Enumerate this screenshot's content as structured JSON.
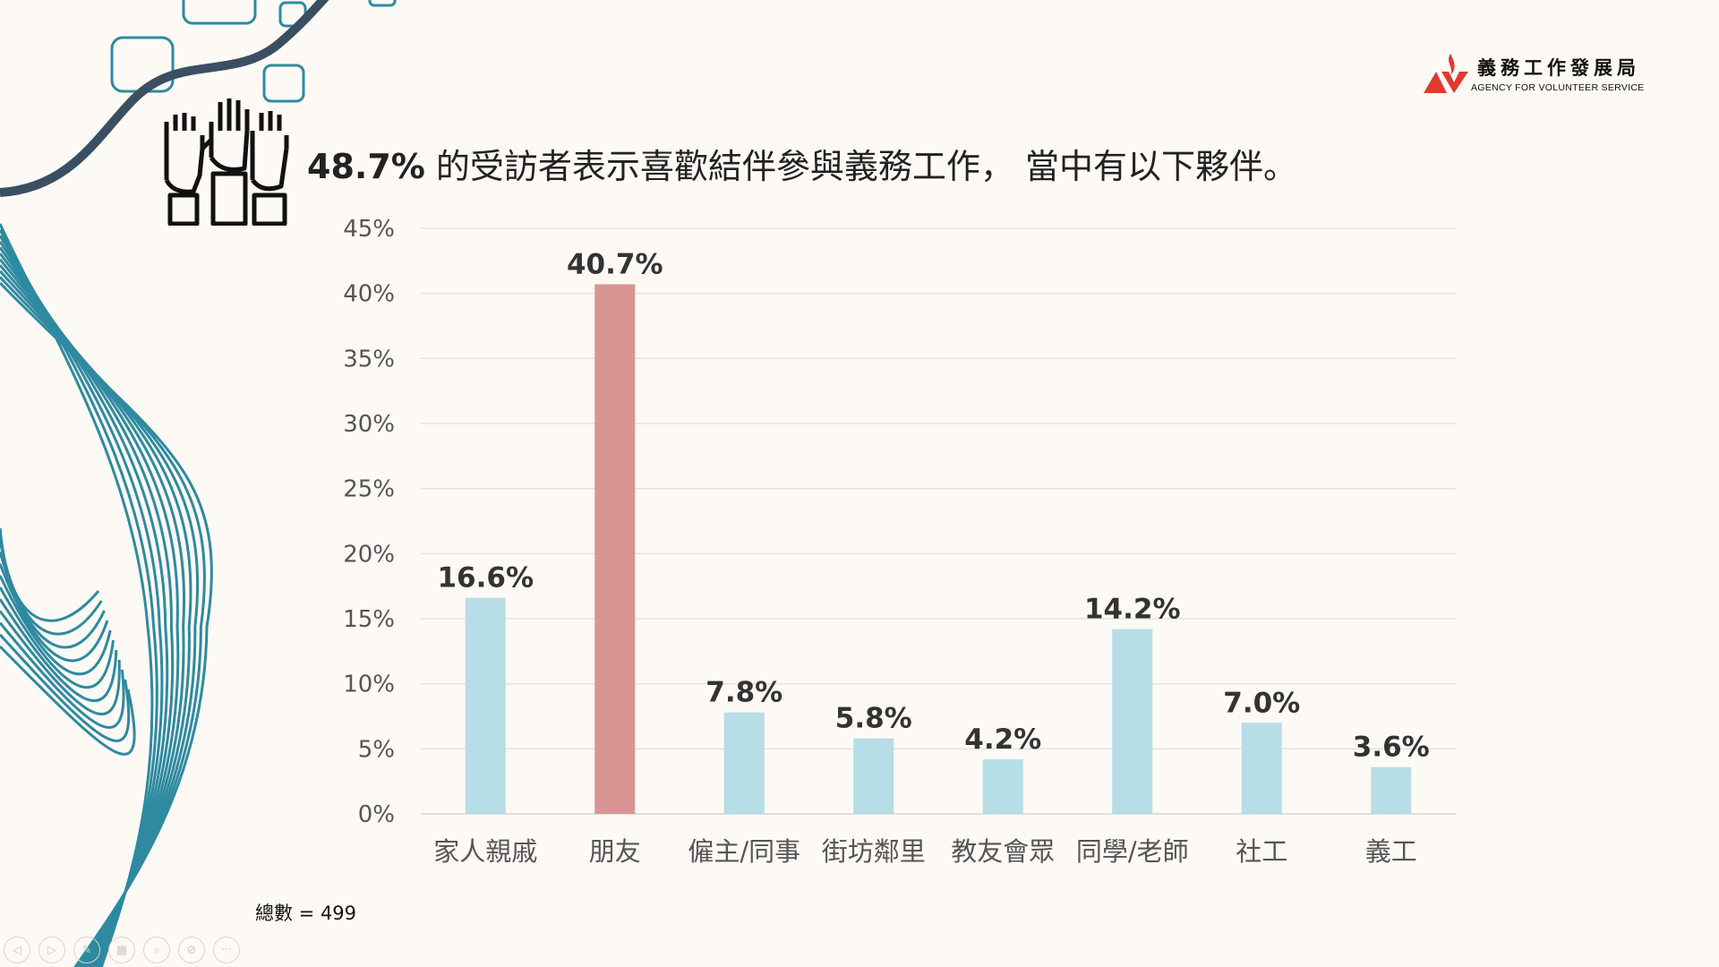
{
  "header": {
    "highlight": "48.7%",
    "title": " 的受訪者表示喜歡結伴參與義務工作， 當中有以下夥伴。"
  },
  "logo": {
    "cn": "義務工作發展局",
    "en": "AGENCY FOR VOLUNTEER SERVICE"
  },
  "footer": {
    "total": "總數 = 499"
  },
  "toolbar": {
    "icons": [
      "prev-icon",
      "next-icon",
      "pen-icon",
      "grid-icon",
      "zoom-icon",
      "camera-off-icon",
      "more-icon"
    ]
  },
  "colors": {
    "bar": "#b7dde6",
    "highlight_bar": "#d99594",
    "accent": "#2e8aa0",
    "dark_curve": "#3b4f63"
  },
  "chart_data": {
    "type": "bar",
    "title": "",
    "xlabel": "",
    "ylabel": "",
    "categories": [
      "家人親戚",
      "朋友",
      "僱主/同事",
      "街坊鄰里",
      "教友會眾",
      "同學/老師",
      "社工",
      "義工"
    ],
    "values": [
      16.6,
      40.7,
      7.8,
      5.8,
      4.2,
      14.2,
      7.0,
      3.6
    ],
    "data_labels": [
      "16.6%",
      "40.7%",
      "7.8%",
      "5.8%",
      "4.2%",
      "14.2%",
      "7.0%",
      "3.6%"
    ],
    "highlight_index": 1,
    "ylim": [
      0,
      45
    ],
    "yticks": [
      0,
      5,
      10,
      15,
      20,
      25,
      30,
      35,
      40,
      45
    ],
    "ytick_labels": [
      "0%",
      "5%",
      "10%",
      "15%",
      "20%",
      "25%",
      "30%",
      "35%",
      "40%",
      "45%"
    ],
    "grid": true,
    "legend": "none"
  }
}
